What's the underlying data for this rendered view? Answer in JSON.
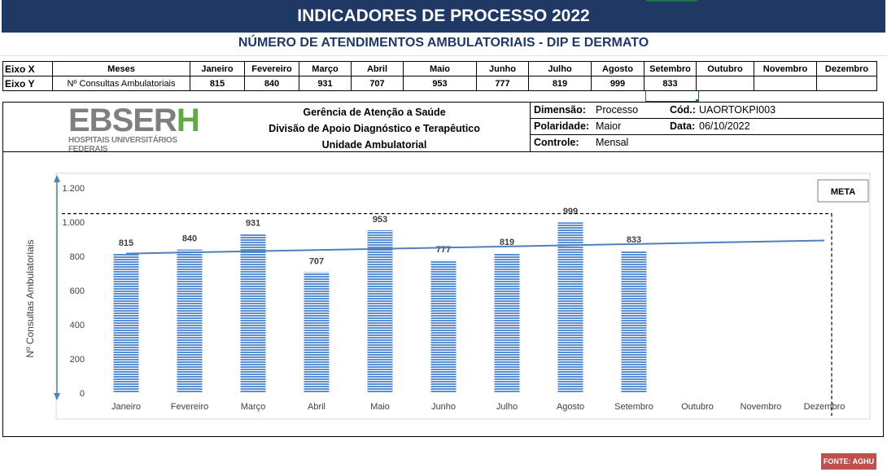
{
  "header": {
    "title": "INDICADORES DE PROCESSO 2022",
    "subtitle": "NÚMERO DE ATENDIMENTOS AMBULATORIAIS - DIP E DERMATO"
  },
  "axes_table": {
    "x_label": "Eixo X",
    "y_label": "Eixo Y",
    "x_name": "Meses",
    "y_name": "Nº Consultas Ambulatoriais",
    "months": [
      "Janeiro",
      "Fevereiro",
      "Março",
      "Abril",
      "Maio",
      "Junho",
      "Julho",
      "Agosto",
      "Setembro",
      "Outubro",
      "Novembro",
      "Dezembro"
    ],
    "values": [
      "815",
      "840",
      "931",
      "707",
      "953",
      "777",
      "819",
      "999",
      "833",
      "",
      "",
      ""
    ]
  },
  "logo": {
    "main": "EBSER",
    "accent": "H",
    "sub": "HOSPITAIS UNIVERSITÁRIOS FEDERAIS"
  },
  "org": {
    "line1": "Gerência de Atenção a Saúde",
    "line2": "Divisão de Apoio Diagnóstico e Terapêutico",
    "line3": "Unidade Ambulatorial"
  },
  "info": {
    "dimensao_label": "Dimensão:",
    "dimensao_value": "Processo",
    "cod_label": "Cód.:",
    "cod_value": "UAORTOKPI003",
    "polaridade_label": "Polaridade:",
    "polaridade_value": "Maior",
    "data_label": "Data:",
    "data_value": "06/10/2022",
    "controle_label": "Controle:",
    "controle_value": "Mensal"
  },
  "chart_data": {
    "type": "bar",
    "categories": [
      "Janeiro",
      "Fevereiro",
      "Março",
      "Abril",
      "Maio",
      "Junho",
      "Julho",
      "Agosto",
      "Setembro",
      "Outubro",
      "Novembro",
      "Dezembro"
    ],
    "series": [
      {
        "values": [
          815,
          840,
          931,
          707,
          953,
          777,
          819,
          999,
          833,
          null,
          null,
          null
        ]
      }
    ],
    "trendline": [
      816,
      823,
      830,
      837,
      844,
      851,
      858,
      865,
      872,
      879,
      886,
      893
    ],
    "meta": 1050,
    "meta_label": "META",
    "ylabel": "Nº Consultas Ambulatoriais",
    "ylim": [
      0,
      1200
    ],
    "yticks": [
      0,
      200,
      400,
      600,
      800,
      1000,
      1200
    ],
    "ytick_labels": [
      "0",
      "200",
      "400",
      "600",
      "800",
      "1.000",
      "1.200"
    ],
    "grid": false,
    "colors": {
      "bar": "#5b8fd1",
      "bar_stripe": "#ffffff",
      "trend": "#4f81bd",
      "meta": "#000000",
      "axis_arrow": "#4f81bd"
    }
  },
  "footer": {
    "fonte": "FONTE: AGHU"
  },
  "colors": {
    "banner": "#1f3864",
    "logo_gray": "#7f7f7f",
    "logo_green": "#5fa845",
    "fonte_bg": "#c0504d"
  }
}
